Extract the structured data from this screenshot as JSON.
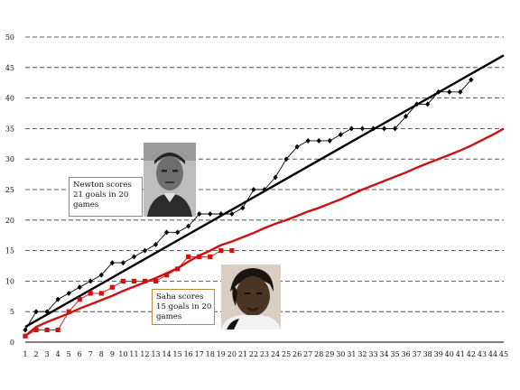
{
  "chart_data": {
    "type": "line",
    "title": "",
    "xlabel": "",
    "ylabel": "",
    "xlim": [
      1,
      45
    ],
    "ylim": [
      0,
      50
    ],
    "x_ticks": [
      1,
      2,
      3,
      4,
      5,
      6,
      7,
      8,
      9,
      10,
      11,
      12,
      13,
      14,
      15,
      16,
      17,
      18,
      19,
      20,
      21,
      22,
      23,
      24,
      25,
      26,
      27,
      28,
      29,
      30,
      31,
      32,
      33,
      34,
      35,
      36,
      37,
      38,
      39,
      40,
      41,
      42,
      43,
      44,
      45
    ],
    "y_ticks": [
      0,
      5,
      10,
      15,
      20,
      25,
      30,
      35,
      40,
      45,
      50
    ],
    "grid": "horizontal dashed",
    "series": [
      {
        "key": "newton_trend",
        "color": "#000000",
        "x": [
          1,
          45
        ],
        "y": [
          2.5,
          47
        ]
      },
      {
        "key": "saha_trend",
        "color": "#cc1111",
        "x": [
          1,
          2,
          3,
          4,
          5,
          6,
          7,
          8,
          9,
          10,
          11,
          12,
          13,
          14,
          15,
          16,
          17,
          18,
          19,
          20,
          21,
          22,
          23,
          24,
          25,
          26,
          27,
          28,
          29,
          30,
          31,
          32,
          33,
          34,
          35,
          36,
          37,
          38,
          39,
          40,
          41,
          42,
          43,
          44,
          45
        ],
        "y": [
          1,
          2.5,
          3.3,
          4,
          4.7,
          5.5,
          6.2,
          6.9,
          7.6,
          8.4,
          9.1,
          9.8,
          10.5,
          11.3,
          12.1,
          13.2,
          14.2,
          15,
          15.9,
          16.5,
          17.2,
          17.9,
          18.7,
          19.4,
          20,
          20.7,
          21.4,
          22,
          22.7,
          23.4,
          24.2,
          25,
          25.7,
          26.4,
          27.1,
          27.8,
          28.6,
          29.3,
          30,
          30.7,
          31.4,
          32.2,
          33.1,
          34,
          35
        ]
      },
      {
        "key": "newton_goals",
        "color": "#000000",
        "marker": "diamond",
        "x": [
          1,
          2,
          3,
          4,
          5,
          6,
          7,
          8,
          9,
          10,
          11,
          12,
          13,
          14,
          15,
          16,
          17,
          18,
          19,
          20,
          21,
          22,
          23,
          24,
          25,
          26,
          27,
          28,
          29,
          30,
          31,
          32,
          33,
          34,
          35,
          36,
          37,
          38,
          39,
          40,
          41,
          42
        ],
        "y": [
          2,
          5,
          5,
          7,
          8,
          9,
          10,
          11,
          13,
          13,
          14,
          15,
          16,
          18,
          18,
          19,
          21,
          21,
          21,
          21,
          22,
          25,
          25,
          27,
          30,
          32,
          33,
          33,
          33,
          34,
          35,
          35,
          35,
          35,
          35,
          37,
          39,
          39,
          41,
          41,
          41,
          43
        ]
      },
      {
        "key": "saha_goals",
        "color": "#cc1111",
        "marker": "square",
        "x": [
          1,
          2,
          3,
          4,
          5,
          6,
          7,
          8,
          9,
          10,
          11,
          12,
          13,
          14,
          15,
          16,
          17,
          18,
          19,
          20
        ],
        "y": [
          1,
          2,
          2,
          2,
          5,
          7,
          8,
          8,
          9,
          10,
          10,
          10,
          10,
          11,
          12,
          14,
          14,
          14,
          15,
          15
        ]
      }
    ],
    "annotations": {
      "newton": [
        "Newton scores",
        "21 goals in 20",
        "games"
      ],
      "saha": [
        "Saha scores",
        "15 goals in 20",
        "games"
      ]
    }
  }
}
